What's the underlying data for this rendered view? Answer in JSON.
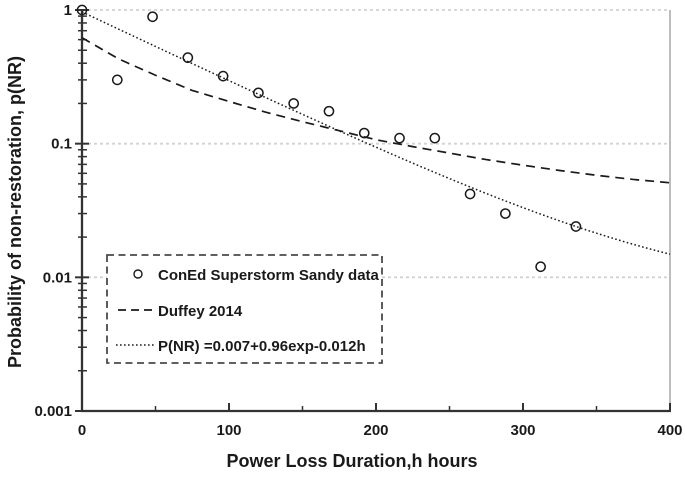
{
  "chart_data": {
    "type": "scatter",
    "title": "",
    "xlabel": "Power Loss Duration,h hours",
    "ylabel": "Probability of non-restoration, p(NR)",
    "xlim": [
      0,
      400
    ],
    "x_major_ticks": [
      0,
      100,
      200,
      300,
      400
    ],
    "x_tick_labels": [
      "0",
      "100",
      "200",
      "300",
      "400"
    ],
    "x_minor_ticks": [
      50,
      150,
      250,
      350
    ],
    "y_scale": "log",
    "ylim": [
      0.001,
      1
    ],
    "y_major_ticks": [
      1,
      0.1,
      0.01,
      0.001
    ],
    "y_tick_labels": [
      "1",
      "0.1",
      "0.01",
      "0.001"
    ],
    "grid": {
      "horizontal_at": [
        1,
        0.1,
        0.01
      ],
      "style": "dashed"
    },
    "series": [
      {
        "name": "ConEd Superstorm Sandy data",
        "type": "scatter",
        "marker": "open-circle",
        "x": [
          0,
          24,
          48,
          72,
          96,
          120,
          144,
          168,
          192,
          216,
          240,
          264,
          288,
          312,
          336
        ],
        "y": [
          1.0,
          0.3,
          0.89,
          0.44,
          0.32,
          0.24,
          0.2,
          0.175,
          0.12,
          0.11,
          0.11,
          0.042,
          0.03,
          0.012,
          0.024
        ]
      },
      {
        "name": "Duffey 2014",
        "type": "line",
        "line_style": "dashed",
        "x": [
          0,
          25,
          50,
          75,
          100,
          125,
          150,
          175,
          200,
          225,
          250,
          275,
          300,
          325,
          350,
          375,
          400
        ],
        "y": [
          0.62,
          0.43,
          0.325,
          0.25,
          0.207,
          0.172,
          0.146,
          0.125,
          0.107,
          0.095,
          0.085,
          0.076,
          0.069,
          0.063,
          0.058,
          0.054,
          0.051
        ]
      },
      {
        "name": "P(NR) =0.007+0.96exp-0.012h",
        "type": "line",
        "line_style": "dotted",
        "formula": {
          "offset": 0.007,
          "amplitude": 0.96,
          "decay_rate": 0.012
        },
        "x_start": 0,
        "x_end": 400
      }
    ],
    "legend": {
      "position": "lower-left",
      "border": "dashed",
      "entries": [
        "ConEd Superstorm Sandy data",
        "Duffey 2014",
        "P(NR) =0.007+0.96exp-0.012h"
      ]
    }
  },
  "colors": {
    "background": "#ffffff",
    "axis": "#333333",
    "grid": "#d2d2d2",
    "right_border": "#bdbdbd",
    "series_line": "#1a1a1a",
    "marker_stroke": "#1a1a1a",
    "text": "#1a1a1a",
    "legend_border": "#4a4a4a"
  }
}
